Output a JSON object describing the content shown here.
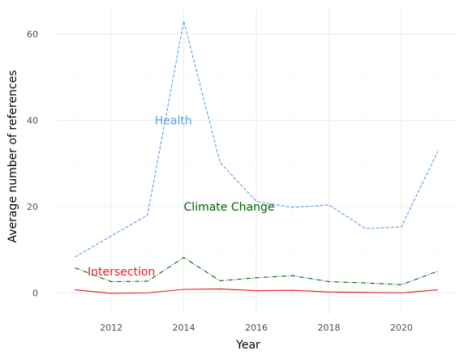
{
  "chart_data": {
    "type": "line",
    "xlabel": "Year",
    "ylabel": "Average number of references",
    "x": [
      2011,
      2012,
      2013,
      2014,
      2015,
      2016,
      2017,
      2018,
      2019,
      2020,
      2021
    ],
    "xlim": [
      2010.5,
      2021.5
    ],
    "ylim": [
      -5,
      66
    ],
    "x_ticks": [
      2012,
      2014,
      2016,
      2018,
      2020
    ],
    "y_ticks": [
      0,
      20,
      40,
      60
    ],
    "grid": true,
    "legend": "none",
    "series": [
      {
        "name": "Health",
        "color": "#5a9ee8",
        "style": "dashed",
        "values": [
          8.3,
          13.2,
          18.0,
          63.0,
          30.2,
          21.2,
          19.8,
          20.4,
          14.9,
          15.3,
          32.8
        ],
        "label_anchor": {
          "x": 2013.2,
          "y": 40
        }
      },
      {
        "name": "Climate Change",
        "color": "#006400",
        "style": "dashdot",
        "values": [
          5.8,
          2.6,
          2.7,
          8.2,
          2.8,
          3.5,
          4.0,
          2.6,
          2.3,
          1.9,
          5.0
        ],
        "label_anchor": {
          "x": 2014.0,
          "y": 20
        }
      },
      {
        "name": "Intersection",
        "color": "#e41a1c",
        "style": "solid",
        "values": [
          0.7,
          -0.1,
          0.0,
          0.8,
          0.9,
          0.5,
          0.6,
          0.2,
          0.1,
          0.0,
          0.7
        ],
        "label_anchor": {
          "x": 2011.35,
          "y": 5
        }
      }
    ]
  }
}
